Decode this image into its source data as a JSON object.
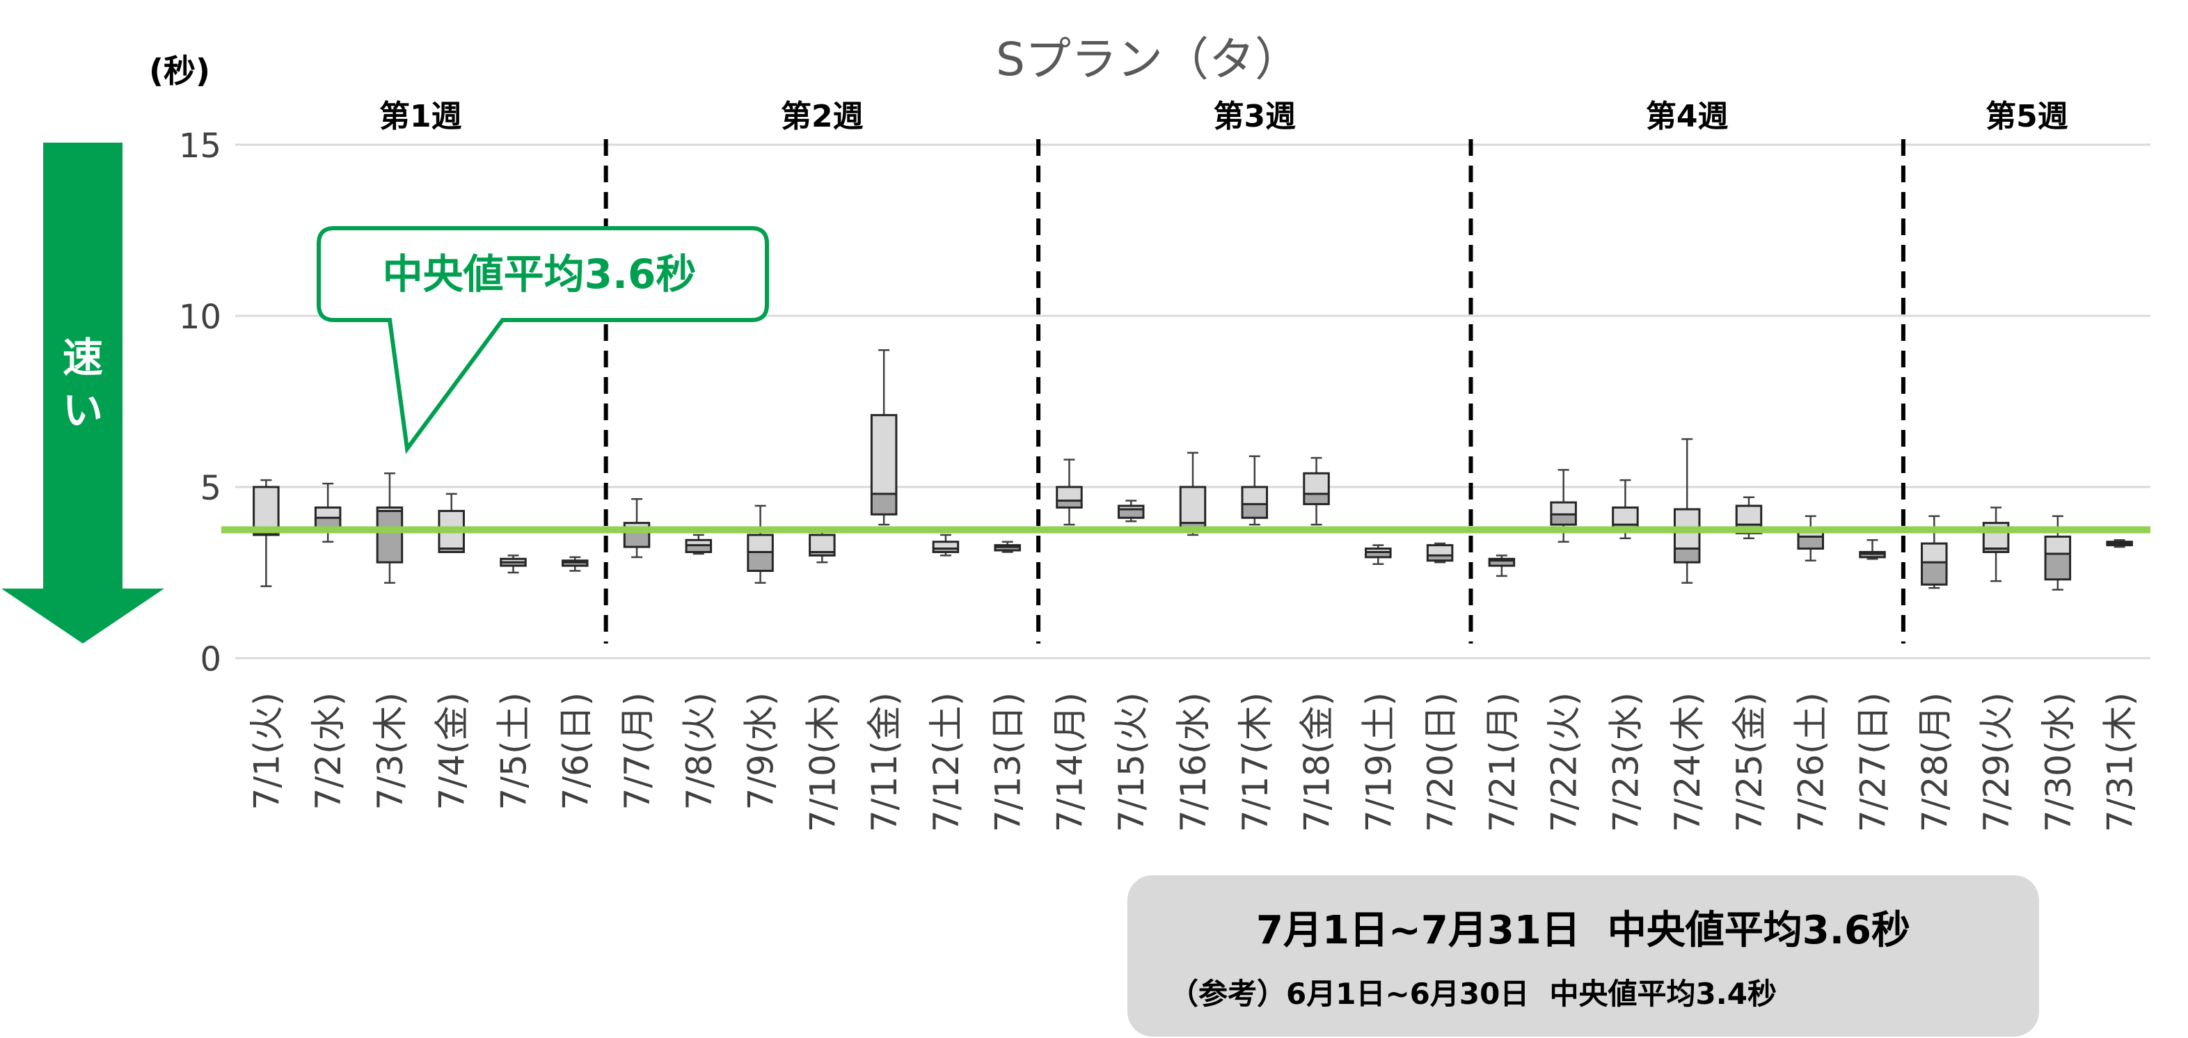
{
  "chart_data": {
    "type": "boxplot",
    "title": "Sプラン（タ）",
    "ylabel": "(秒)",
    "ylim": [
      0,
      15
    ],
    "yticks": [
      "0",
      "5",
      "10",
      "15"
    ],
    "grid": true,
    "weeks": [
      {
        "label": "第1週",
        "start": 0,
        "end": 5
      },
      {
        "label": "第2週",
        "start": 6,
        "end": 12
      },
      {
        "label": "第3週",
        "start": 13,
        "end": 19
      },
      {
        "label": "第4週",
        "start": 20,
        "end": 26
      },
      {
        "label": "第5週",
        "start": 27,
        "end": 30
      }
    ],
    "categories": [
      "7/1(火)",
      "7/2(水)",
      "7/3(木)",
      "7/4(金)",
      "7/5(土)",
      "7/6(日)",
      "7/7(月)",
      "7/8(火)",
      "7/9(水)",
      "7/10(木)",
      "7/11(金)",
      "7/12(土)",
      "7/13(日)",
      "7/14(月)",
      "7/15(火)",
      "7/16(水)",
      "7/17(木)",
      "7/18(金)",
      "7/19(土)",
      "7/20(日)",
      "7/21(月)",
      "7/22(火)",
      "7/23(水)",
      "7/24(木)",
      "7/25(金)",
      "7/26(土)",
      "7/27(日)",
      "7/28(月)",
      "7/29(火)",
      "7/30(水)",
      "7/31(木)"
    ],
    "boxes": [
      {
        "min": 2.1,
        "q1": 3.6,
        "median": 3.65,
        "q3": 5.0,
        "max": 5.2
      },
      {
        "min": 3.4,
        "q1": 3.8,
        "median": 4.1,
        "q3": 4.4,
        "max": 5.1
      },
      {
        "min": 2.2,
        "q1": 2.8,
        "median": 4.3,
        "q3": 4.4,
        "max": 5.4
      },
      {
        "min": 3.1,
        "q1": 3.1,
        "median": 3.2,
        "q3": 4.3,
        "max": 4.8
      },
      {
        "min": 2.5,
        "q1": 2.7,
        "median": 2.8,
        "q3": 2.9,
        "max": 3.0
      },
      {
        "min": 2.55,
        "q1": 2.7,
        "median": 2.8,
        "q3": 2.85,
        "max": 2.95
      },
      {
        "min": 2.95,
        "q1": 3.25,
        "median": 3.75,
        "q3": 3.95,
        "max": 4.65
      },
      {
        "min": 3.05,
        "q1": 3.1,
        "median": 3.3,
        "q3": 3.45,
        "max": 3.6
      },
      {
        "min": 2.2,
        "q1": 2.55,
        "median": 3.1,
        "q3": 3.6,
        "max": 4.45
      },
      {
        "min": 2.8,
        "q1": 3.0,
        "median": 3.1,
        "q3": 3.6,
        "max": 3.8
      },
      {
        "min": 3.9,
        "q1": 4.2,
        "median": 4.8,
        "q3": 7.1,
        "max": 9.0
      },
      {
        "min": 3.0,
        "q1": 3.1,
        "median": 3.2,
        "q3": 3.4,
        "max": 3.6
      },
      {
        "min": 3.1,
        "q1": 3.15,
        "median": 3.25,
        "q3": 3.3,
        "max": 3.4
      },
      {
        "min": 3.9,
        "q1": 4.4,
        "median": 4.6,
        "q3": 5.0,
        "max": 5.8
      },
      {
        "min": 4.0,
        "q1": 4.1,
        "median": 4.35,
        "q3": 4.45,
        "max": 4.6
      },
      {
        "min": 3.6,
        "q1": 3.7,
        "median": 3.95,
        "q3": 5.0,
        "max": 6.0
      },
      {
        "min": 3.9,
        "q1": 4.1,
        "median": 4.5,
        "q3": 5.0,
        "max": 5.9
      },
      {
        "min": 3.9,
        "q1": 4.5,
        "median": 4.8,
        "q3": 5.4,
        "max": 5.85
      },
      {
        "min": 2.75,
        "q1": 2.95,
        "median": 3.1,
        "q3": 3.2,
        "max": 3.3
      },
      {
        "min": 2.8,
        "q1": 2.85,
        "median": 3.0,
        "q3": 3.3,
        "max": 3.35
      },
      {
        "min": 2.4,
        "q1": 2.7,
        "median": 2.85,
        "q3": 2.9,
        "max": 3.0
      },
      {
        "min": 3.4,
        "q1": 3.9,
        "median": 4.2,
        "q3": 4.55,
        "max": 5.5
      },
      {
        "min": 3.5,
        "q1": 3.8,
        "median": 3.9,
        "q3": 4.4,
        "max": 5.2
      },
      {
        "min": 2.2,
        "q1": 2.8,
        "median": 3.2,
        "q3": 4.35,
        "max": 6.4
      },
      {
        "min": 3.5,
        "q1": 3.65,
        "median": 3.9,
        "q3": 4.45,
        "max": 4.7
      },
      {
        "min": 2.85,
        "q1": 3.2,
        "median": 3.55,
        "q3": 3.75,
        "max": 4.15
      },
      {
        "min": 2.9,
        "q1": 2.95,
        "median": 3.05,
        "q3": 3.1,
        "max": 3.45
      },
      {
        "min": 2.05,
        "q1": 2.15,
        "median": 2.8,
        "q3": 3.35,
        "max": 4.15
      },
      {
        "min": 2.25,
        "q1": 3.1,
        "median": 3.2,
        "q3": 3.95,
        "max": 4.4
      },
      {
        "min": 2.0,
        "q1": 2.3,
        "median": 3.05,
        "q3": 3.55,
        "max": 4.15
      },
      {
        "min": 3.25,
        "q1": 3.3,
        "median": 3.35,
        "q3": 3.4,
        "max": 3.45
      }
    ],
    "reference_line": {
      "value": 3.75,
      "color": "#92d050"
    },
    "callout": {
      "text": "中央値平均3.6秒",
      "color": "#00a050"
    },
    "speed_arrow": {
      "text": [
        "速",
        "い"
      ],
      "color": "#00a050"
    }
  },
  "summary": {
    "main": "7月1日~7月31日  中央値平均3.6秒",
    "sub": "（参考）6月1日~6月30日  中央値平均3.4秒"
  },
  "colors": {
    "box_fill_light": "#d9d9d9",
    "box_fill_dark": "#a6a6a6",
    "grid": "#d9d9d9",
    "text": "#404040"
  }
}
